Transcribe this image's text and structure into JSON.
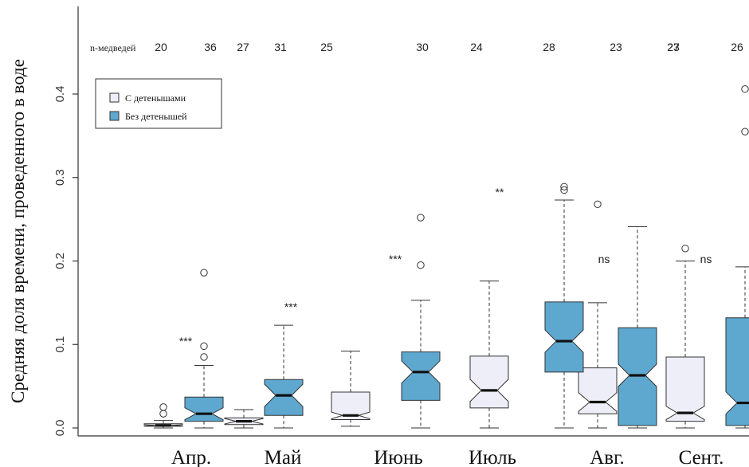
{
  "chart_data": {
    "type": "boxplot",
    "ylabel": "Средняя доля времени, проведенного в воде",
    "xlabel": "",
    "ylim": [
      -0.012,
      0.47
    ],
    "yticks": [
      "0.0",
      "0.1",
      "0.2",
      "0.3",
      "0.4"
    ],
    "ytick_values": [
      0.0,
      0.1,
      0.2,
      0.3,
      0.4
    ],
    "categories": [
      "Апр.",
      "Май",
      "Июнь",
      "Июль",
      "Авг.",
      "Сент."
    ],
    "n_label": "n-медведей",
    "legend_position": "top-left",
    "series": [
      {
        "name": "С детенышами",
        "color": "#eeeef8",
        "boxes": [
          {
            "min": 0.0,
            "q1": 0.002,
            "median": 0.003,
            "q3": 0.005,
            "max": 0.009,
            "outliers": [
              0.017,
              0.025
            ],
            "n": "20"
          },
          {
            "min": 0.0,
            "q1": 0.004,
            "median": 0.008,
            "q3": 0.012,
            "max": 0.022,
            "outliers": [],
            "n": "27"
          },
          {
            "min": 0.002,
            "q1": 0.01,
            "median": 0.015,
            "q3": 0.043,
            "max": 0.092,
            "outliers": [],
            "n": "25"
          },
          {
            "min": 0.0,
            "q1": 0.024,
            "median": 0.045,
            "q3": 0.086,
            "max": 0.176,
            "outliers": [],
            "n": "24"
          },
          {
            "min": 0.0,
            "q1": 0.017,
            "median": 0.031,
            "q3": 0.072,
            "max": 0.15,
            "outliers": [
              0.268
            ],
            "n": "23"
          },
          {
            "min": 0.0,
            "q1": 0.008,
            "median": 0.018,
            "q3": 0.085,
            "max": 0.2,
            "outliers": [
              0.215
            ],
            "n": "23"
          }
        ]
      },
      {
        "name": "Без детенышей",
        "color": "#5ea8d0",
        "boxes": [
          {
            "min": 0.0,
            "q1": 0.008,
            "median": 0.017,
            "q3": 0.037,
            "max": 0.075,
            "outliers": [
              0.085,
              0.098,
              0.186
            ],
            "n": "36"
          },
          {
            "min": 0.0,
            "q1": 0.015,
            "median": 0.039,
            "q3": 0.058,
            "max": 0.123,
            "outliers": [],
            "n": "31"
          },
          {
            "min": 0.0,
            "q1": 0.033,
            "median": 0.067,
            "q3": 0.091,
            "max": 0.153,
            "outliers": [
              0.195,
              0.252
            ],
            "n": "30"
          },
          {
            "min": 0.0,
            "q1": 0.067,
            "median": 0.104,
            "q3": 0.151,
            "max": 0.273,
            "outliers": [
              0.285,
              0.289
            ],
            "n": "28"
          },
          {
            "min": 0.0,
            "q1": 0.003,
            "median": 0.063,
            "q3": 0.12,
            "max": 0.241,
            "outliers": [],
            "n": "27"
          },
          {
            "min": 0.0,
            "q1": 0.003,
            "median": 0.03,
            "q3": 0.132,
            "max": 0.193,
            "outliers": [
              0.355,
              0.406
            ],
            "n": "26"
          }
        ]
      }
    ],
    "significance": [
      "***",
      "***",
      "***",
      "**",
      "ns",
      "ns"
    ]
  }
}
